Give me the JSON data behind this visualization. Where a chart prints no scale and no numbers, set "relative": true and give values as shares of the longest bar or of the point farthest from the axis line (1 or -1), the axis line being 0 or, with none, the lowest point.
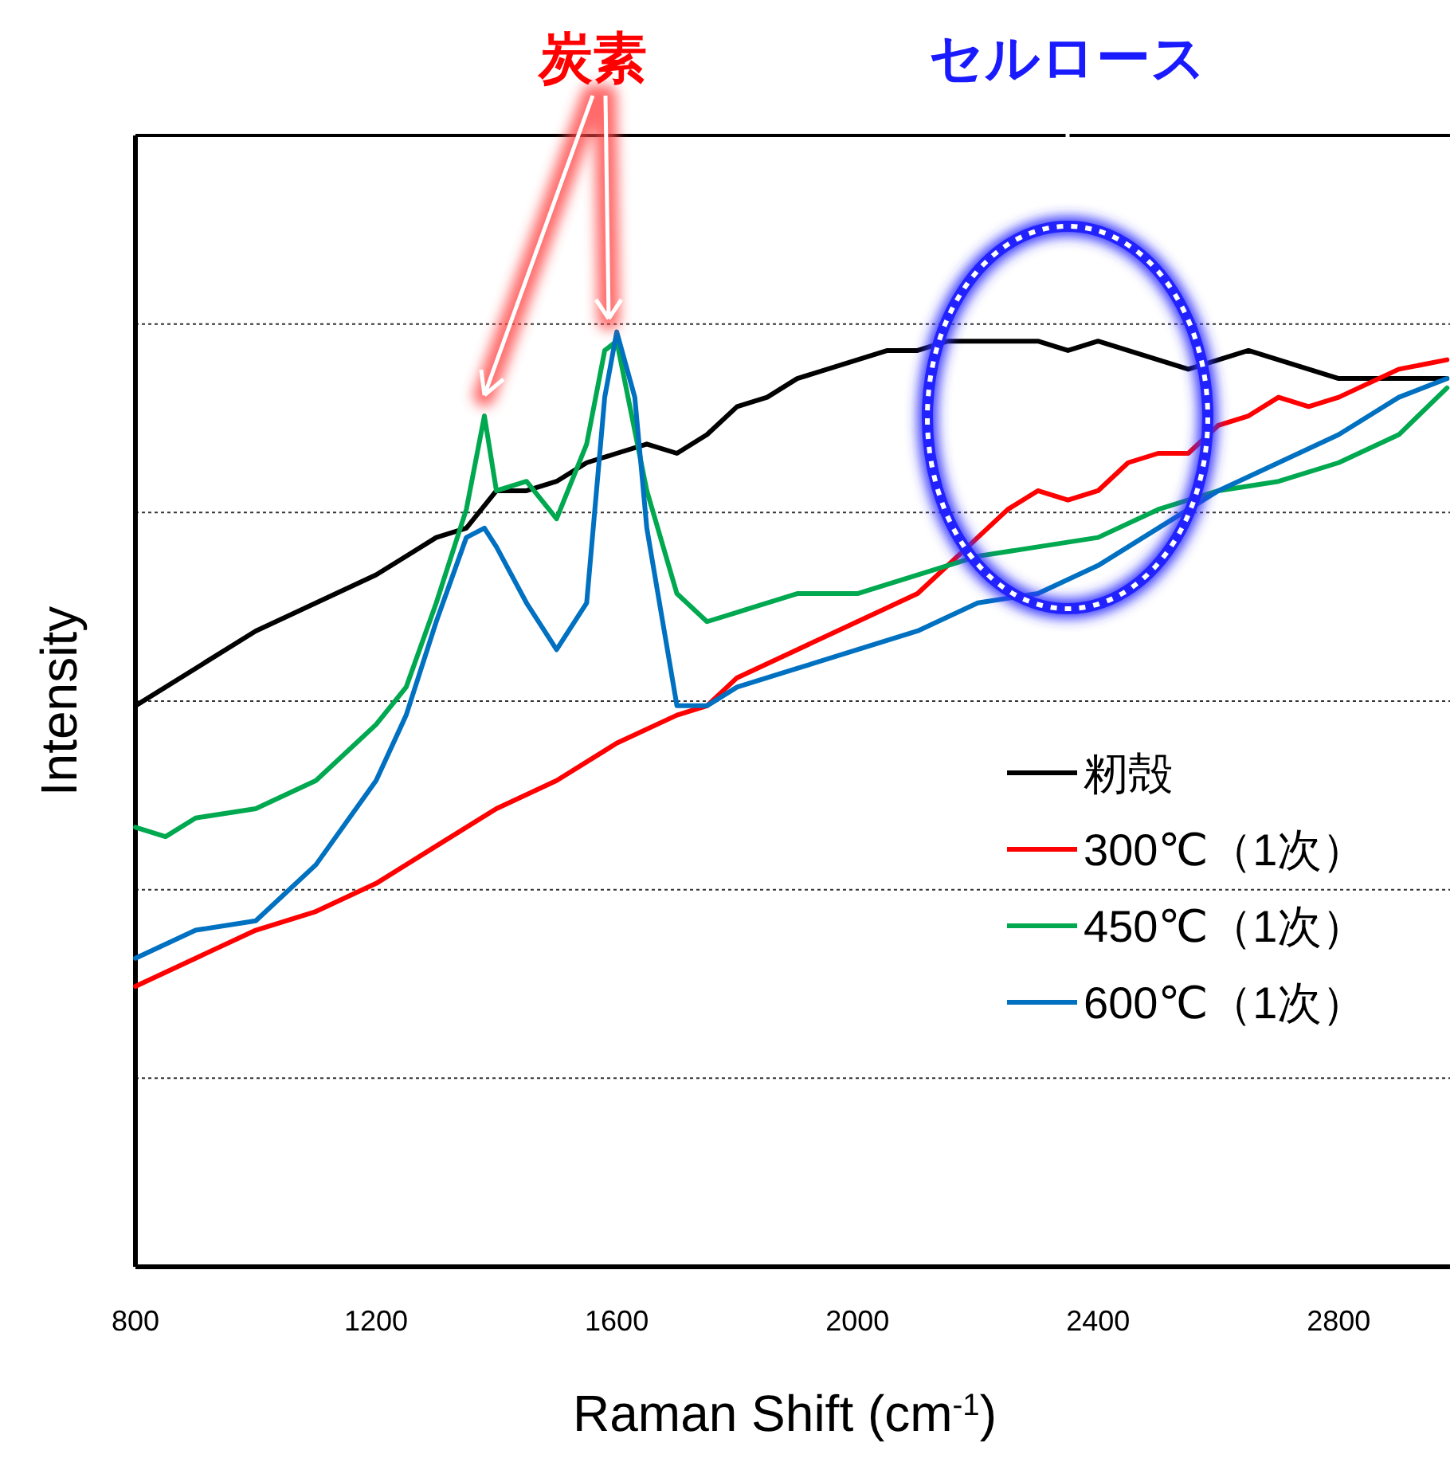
{
  "chart_data": {
    "type": "line",
    "relative": true,
    "xlabel": "Raman Shift (cm$^{-1}$)",
    "ylabel": "Intensity",
    "xlim": [
      800,
      2985
    ],
    "xticks": [
      800,
      1200,
      1600,
      2000,
      2400,
      2800
    ],
    "grid": "y",
    "legend": "bottom right",
    "annotations": [
      "炭素",
      "セルロース"
    ],
    "series": [
      {
        "name": "籾殻",
        "color": "#000000",
        "x": [
          800,
          900,
          1000,
          1100,
          1200,
          1300,
          1350,
          1400,
          1450,
          1500,
          1550,
          1600,
          1650,
          1700,
          1750,
          1800,
          1850,
          1900,
          2000,
          2050,
          2100,
          2150,
          2200,
          2250,
          2300,
          2350,
          2400,
          2450,
          2500,
          2550,
          2600,
          2650,
          2700,
          2800,
          2900,
          2980
        ],
        "values": [
          0.6,
          0.64,
          0.68,
          0.71,
          0.74,
          0.78,
          0.79,
          0.83,
          0.83,
          0.84,
          0.86,
          0.87,
          0.88,
          0.87,
          0.89,
          0.92,
          0.93,
          0.95,
          0.97,
          0.98,
          0.98,
          0.99,
          0.99,
          0.99,
          0.99,
          0.98,
          0.99,
          0.98,
          0.97,
          0.96,
          0.97,
          0.98,
          0.97,
          0.95,
          0.95,
          0.95
        ]
      },
      {
        "name": "300℃（1次）",
        "color": "#ff0000",
        "x": [
          800,
          900,
          1000,
          1100,
          1200,
          1300,
          1400,
          1500,
          1600,
          1700,
          1750,
          1800,
          1900,
          2000,
          2100,
          2200,
          2250,
          2300,
          2350,
          2400,
          2450,
          2500,
          2550,
          2600,
          2650,
          2700,
          2750,
          2800,
          2900,
          2980
        ],
        "values": [
          0.3,
          0.33,
          0.36,
          0.38,
          0.41,
          0.45,
          0.49,
          0.52,
          0.56,
          0.59,
          0.6,
          0.63,
          0.66,
          0.69,
          0.72,
          0.78,
          0.81,
          0.83,
          0.82,
          0.83,
          0.86,
          0.87,
          0.87,
          0.9,
          0.91,
          0.93,
          0.92,
          0.93,
          0.96,
          0.97
        ]
      },
      {
        "name": "450℃（1次）",
        "color": "#00a850",
        "x": [
          800,
          850,
          900,
          1000,
          1100,
          1200,
          1250,
          1300,
          1350,
          1380,
          1400,
          1450,
          1500,
          1550,
          1580,
          1600,
          1650,
          1700,
          1750,
          1800,
          1900,
          2000,
          2100,
          2200,
          2300,
          2400,
          2500,
          2600,
          2700,
          2800,
          2900,
          2980
        ],
        "values": [
          0.47,
          0.46,
          0.48,
          0.49,
          0.52,
          0.58,
          0.62,
          0.71,
          0.81,
          0.91,
          0.83,
          0.84,
          0.8,
          0.88,
          0.98,
          0.99,
          0.83,
          0.72,
          0.69,
          0.7,
          0.72,
          0.72,
          0.74,
          0.76,
          0.77,
          0.78,
          0.81,
          0.83,
          0.84,
          0.86,
          0.89,
          0.94
        ]
      },
      {
        "name": "600℃（1次）",
        "color": "#0070c0",
        "x": [
          800,
          900,
          1000,
          1100,
          1200,
          1250,
          1300,
          1350,
          1380,
          1400,
          1450,
          1500,
          1550,
          1580,
          1600,
          1630,
          1650,
          1700,
          1750,
          1800,
          1900,
          2000,
          2100,
          2200,
          2300,
          2400,
          2500,
          2600,
          2700,
          2800,
          2900,
          2980
        ],
        "values": [
          0.33,
          0.36,
          0.37,
          0.43,
          0.52,
          0.59,
          0.69,
          0.78,
          0.79,
          0.77,
          0.71,
          0.66,
          0.71,
          0.93,
          1,
          0.93,
          0.79,
          0.6,
          0.6,
          0.62,
          0.64,
          0.66,
          0.68,
          0.71,
          0.72,
          0.75,
          0.79,
          0.83,
          0.86,
          0.89,
          0.93,
          0.95
        ]
      }
    ]
  }
}
